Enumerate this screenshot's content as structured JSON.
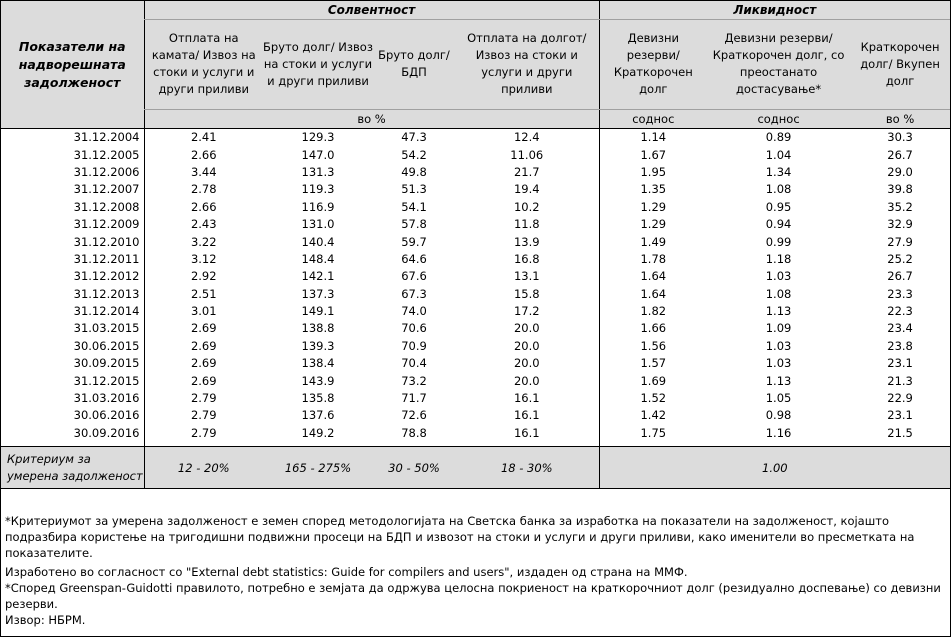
{
  "header": {
    "indicator_label": "Показатели на надворешната задолженост",
    "solvency_group": "Солвентност",
    "liquidity_group": "Ликвидност",
    "columns": [
      "Отплата на камата/ Извоз на стоки и услуги и други приливи",
      "Бруто долг/ Извоз на стоки и услуги и други приливи",
      "Бруто долг/ БДП",
      "Отплата на долгот/ Извоз на стоки и услуги и други приливи",
      "Девизни резерви/ Краткорочен долг",
      "Девизни резерви/ Краткорочен долг, со преостанато достасување*",
      "Краткорочен долг/ Вкупен долг"
    ],
    "unit_solvency": "во %",
    "unit_ratio1": "соднос",
    "unit_ratio2": "соднос",
    "unit_pct": "во %"
  },
  "rows": [
    {
      "date": "31.12.2004",
      "v": [
        "2.41",
        "129.3",
        "47.3",
        "12.4",
        "1.14",
        "0.89",
        "30.3"
      ]
    },
    {
      "date": "31.12.2005",
      "v": [
        "2.66",
        "147.0",
        "54.2",
        "11.06",
        "1.67",
        "1.04",
        "26.7"
      ]
    },
    {
      "date": "31.12.2006",
      "v": [
        "3.44",
        "131.3",
        "49.8",
        "21.7",
        "1.95",
        "1.34",
        "29.0"
      ]
    },
    {
      "date": "31.12.2007",
      "v": [
        "2.78",
        "119.3",
        "51.3",
        "19.4",
        "1.35",
        "1.08",
        "39.8"
      ]
    },
    {
      "date": "31.12.2008",
      "v": [
        "2.66",
        "116.9",
        "54.1",
        "10.2",
        "1.29",
        "0.95",
        "35.2"
      ]
    },
    {
      "date": "31.12.2009",
      "v": [
        "2.43",
        "131.0",
        "57.8",
        "11.8",
        "1.29",
        "0.94",
        "32.9"
      ]
    },
    {
      "date": "31.12.2010",
      "v": [
        "3.22",
        "140.4",
        "59.7",
        "13.9",
        "1.49",
        "0.99",
        "27.9"
      ]
    },
    {
      "date": "31.12.2011",
      "v": [
        "3.12",
        "148.4",
        "64.6",
        "16.8",
        "1.78",
        "1.18",
        "25.2"
      ]
    },
    {
      "date": "31.12.2012",
      "v": [
        "2.92",
        "142.1",
        "67.6",
        "13.1",
        "1.64",
        "1.03",
        "26.7"
      ]
    },
    {
      "date": "31.12.2013",
      "v": [
        "2.51",
        "137.3",
        "67.3",
        "15.8",
        "1.64",
        "1.08",
        "23.3"
      ]
    },
    {
      "date": "31.12.2014",
      "v": [
        "3.01",
        "149.1",
        "74.0",
        "17.2",
        "1.82",
        "1.13",
        "22.3"
      ]
    },
    {
      "date": "31.03.2015",
      "v": [
        "2.69",
        "138.8",
        "70.6",
        "20.0",
        "1.66",
        "1.09",
        "23.4"
      ]
    },
    {
      "date": "30.06.2015",
      "v": [
        "2.69",
        "139.3",
        "70.9",
        "20.0",
        "1.56",
        "1.03",
        "23.8"
      ]
    },
    {
      "date": "30.09.2015",
      "v": [
        "2.69",
        "138.4",
        "70.4",
        "20.0",
        "1.57",
        "1.03",
        "23.1"
      ]
    },
    {
      "date": "31.12.2015",
      "v": [
        "2.69",
        "143.9",
        "73.2",
        "20.0",
        "1.69",
        "1.13",
        "21.3"
      ]
    },
    {
      "date": "31.03.2016",
      "v": [
        "2.79",
        "135.8",
        "71.7",
        "16.1",
        "1.52",
        "1.05",
        "22.9"
      ]
    },
    {
      "date": "30.06.2016",
      "v": [
        "2.79",
        "137.6",
        "72.6",
        "16.1",
        "1.42",
        "0.98",
        "23.1"
      ]
    },
    {
      "date": "30.09.2016",
      "v": [
        "2.79",
        "149.2",
        "78.8",
        "16.1",
        "1.75",
        "1.16",
        "21.5"
      ]
    }
  ],
  "criteria": {
    "label": "Критериум за умерена задолженост",
    "values": [
      "12 - 20%",
      "165 - 275%",
      "30 - 50%",
      "18 - 30%"
    ],
    "liquidity_value": "1.00"
  },
  "notes": [
    "*Критериумот за умерена задолженост е земен според методологијата на Светска банка за изработка на показатели на задолженост, којашто подразбира користење на тригодишни подвижни просеци на БДП и извозот на стоки и услуги и други приливи, како именители во пресметката на показателите.",
    "Изработено во согласност со \"External debt statistics: Guide for compilers and users\", издаден од страна на ММФ.",
    "*Според Greenspan-Guidotti правилото, потребно е земјата да одржува целосна покриеност на краткорочниот долг (резидуално доспевање) со девизни резерви.",
    "Извор: НБРМ."
  ]
}
